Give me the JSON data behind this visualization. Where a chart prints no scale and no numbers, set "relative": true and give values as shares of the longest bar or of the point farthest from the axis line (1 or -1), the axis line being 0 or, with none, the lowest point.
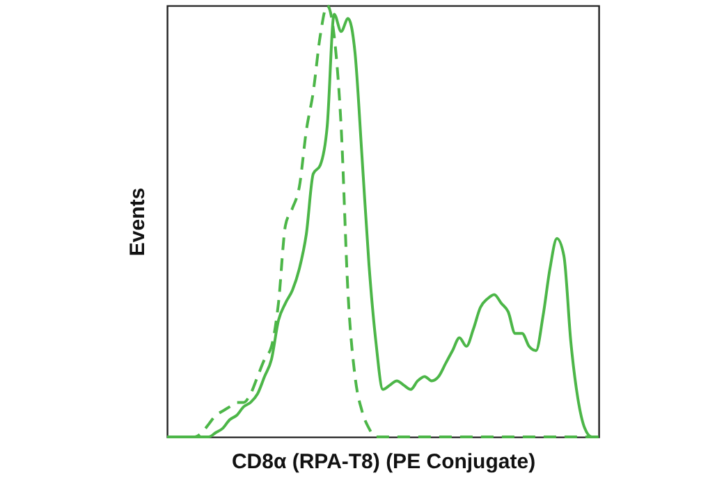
{
  "chart_data": {
    "type": "line",
    "relative": true,
    "xlabel": "CD8α (RPA-T8) (PE Conjugate)",
    "ylabel": "Events",
    "tick_labels": false,
    "grid": false,
    "categories": [
      null,
      null,
      null,
      null,
      null,
      null,
      null,
      null,
      null,
      null,
      null,
      null,
      null,
      null,
      null,
      null,
      null,
      null,
      null,
      null,
      null,
      null,
      null,
      null,
      null,
      null,
      null,
      null,
      null,
      null,
      null,
      null,
      null,
      null,
      null,
      null,
      null,
      null,
      null,
      null,
      null,
      null,
      null,
      null,
      null,
      null,
      null,
      null,
      null,
      null,
      null,
      null,
      null,
      null,
      null,
      null,
      null,
      null,
      null,
      null,
      null,
      null,
      null
    ],
    "series": [
      {
        "color": "#4cb648",
        "line_style": "dashed",
        "values": [
          0,
          0,
          0,
          0,
          0,
          0.01,
          0.03,
          0.05,
          0.06,
          0.07,
          0.08,
          0.08,
          0.1,
          0.14,
          0.18,
          0.21,
          0.31,
          0.49,
          0.53,
          0.58,
          0.71,
          0.8,
          0.93,
          1.0,
          0.93,
          0.72,
          0.33,
          0.14,
          0.06,
          0.02,
          0,
          0,
          0,
          0,
          0,
          0,
          0,
          0,
          0,
          0,
          0,
          0,
          0,
          0,
          0,
          0,
          0,
          0,
          0,
          0,
          0,
          0,
          0,
          0,
          0,
          0,
          0,
          0,
          0,
          0,
          0,
          0,
          0
        ]
      },
      {
        "color": "#4cb648",
        "line_style": "solid",
        "values": [
          0,
          0,
          0,
          0,
          0,
          0,
          0,
          0.01,
          0.02,
          0.04,
          0.05,
          0.07,
          0.08,
          0.1,
          0.14,
          0.18,
          0.27,
          0.31,
          0.34,
          0.39,
          0.47,
          0.61,
          0.63,
          0.72,
          0.98,
          0.94,
          0.97,
          0.89,
          0.65,
          0.4,
          0.22,
          0.11,
          0.12,
          0.13,
          0.12,
          0.11,
          0.13,
          0.14,
          0.13,
          0.14,
          0.17,
          0.2,
          0.23,
          0.21,
          0.25,
          0.3,
          0.32,
          0.33,
          0.31,
          0.29,
          0.24,
          0.24,
          0.21,
          0.2,
          0.28,
          0.39,
          0.46,
          0.42,
          0.22,
          0.09,
          0.02,
          0,
          0
        ]
      }
    ]
  }
}
